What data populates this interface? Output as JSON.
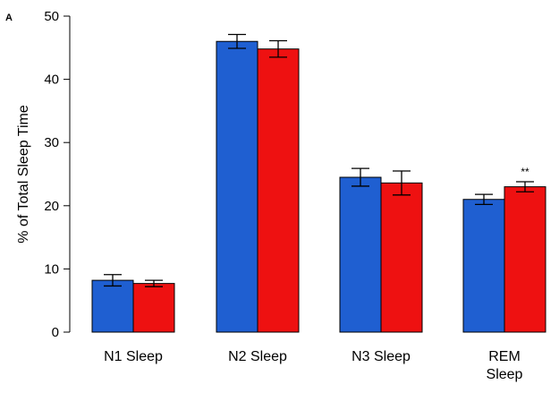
{
  "chart_data": {
    "type": "bar",
    "panel_label": "A",
    "title": "",
    "xlabel": "",
    "ylabel": "% of Total Sleep Time",
    "ylim": [
      0,
      50
    ],
    "yticks": [
      0,
      10,
      20,
      30,
      40,
      50
    ],
    "grid": false,
    "legend": "none",
    "categories": [
      [
        "N1 Sleep"
      ],
      [
        "N2 Sleep"
      ],
      [
        "N3 Sleep"
      ],
      [
        "REM",
        "Sleep"
      ]
    ],
    "series": [
      {
        "color": "#1f5fd1",
        "values": [
          8.2,
          46.0,
          24.5,
          21.0
        ],
        "errors": [
          0.9,
          1.1,
          1.4,
          0.8
        ]
      },
      {
        "color": "#ee1111",
        "values": [
          7.7,
          44.8,
          23.6,
          23.0
        ],
        "errors": [
          0.5,
          1.3,
          1.9,
          0.8
        ]
      }
    ],
    "annotations": [
      {
        "category_index": 3,
        "series_index": 1,
        "text": "**"
      }
    ]
  }
}
